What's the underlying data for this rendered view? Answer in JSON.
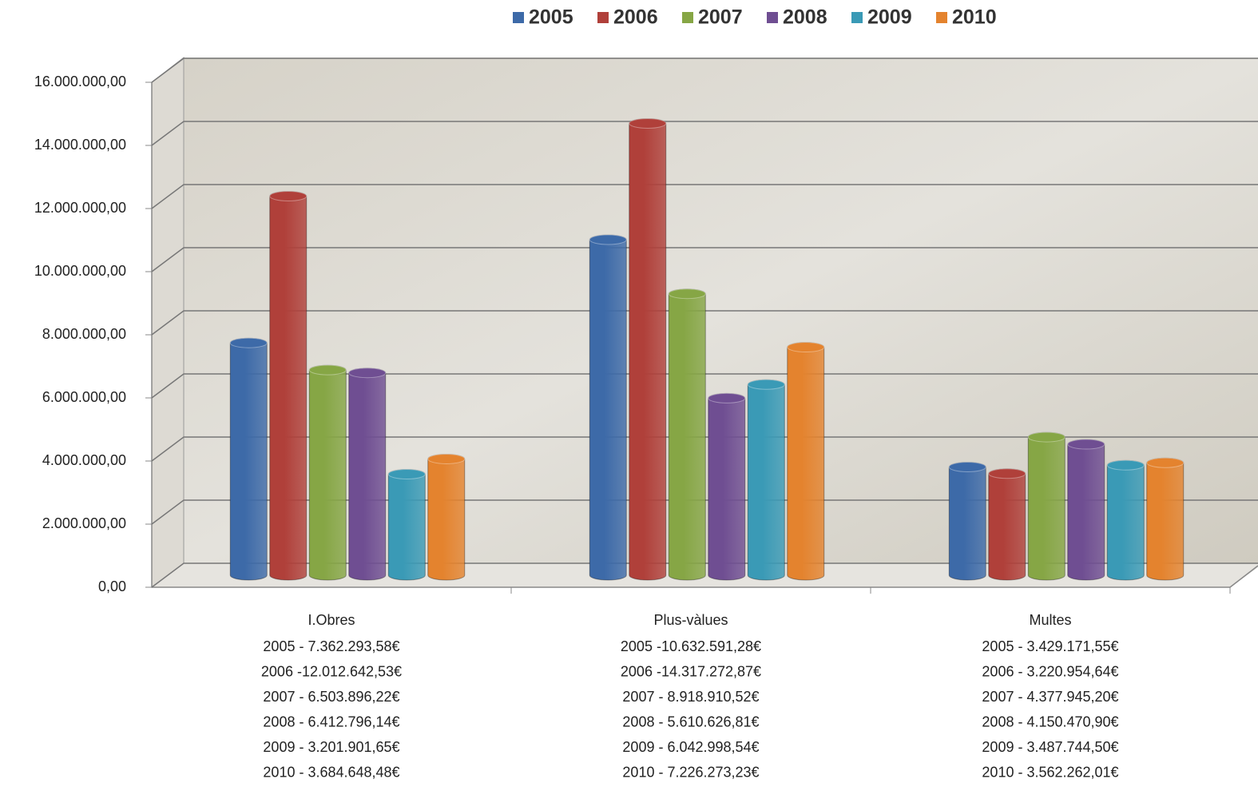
{
  "chart_data": {
    "type": "bar3d",
    "categories": [
      "I.Obres",
      "Plus-vàlues",
      "Multes"
    ],
    "series": [
      {
        "name": "2005",
        "color": "#3d6aa8",
        "values": [
          7362293.58,
          10632591.28,
          3429171.55
        ],
        "value_labels": [
          "2005 - 7.362.293,58€",
          "2005 -10.632.591,28€",
          "2005 - 3.429.171,55€"
        ]
      },
      {
        "name": "2006",
        "color": "#b0403a",
        "values": [
          12012642.53,
          14317272.87,
          3220954.64
        ],
        "value_labels": [
          "2006 -12.012.642,53€",
          "2006 -14.317.272,87€",
          "2006 - 3.220.954,64€"
        ]
      },
      {
        "name": "2007",
        "color": "#86a645",
        "values": [
          6503896.22,
          8918910.52,
          4377945.2
        ],
        "value_labels": [
          "2007 - 6.503.896,22€",
          "2007 - 8.918.910,52€",
          "2007 - 4.377.945,20€"
        ]
      },
      {
        "name": "2008",
        "color": "#6f4e92",
        "values": [
          6412796.14,
          5610626.81,
          4150470.9
        ],
        "value_labels": [
          "2008 - 6.412.796,14€",
          "2008 - 5.610.626,81€",
          "2008 - 4.150.470,90€"
        ]
      },
      {
        "name": "2009",
        "color": "#3a9ab6",
        "values": [
          3201901.65,
          6042998.54,
          3487744.5
        ],
        "value_labels": [
          "2009 - 3.201.901,65€",
          "2009 - 6.042.998,54€",
          "2009 - 3.487.744,50€"
        ]
      },
      {
        "name": "2010",
        "color": "#e4832e",
        "values": [
          3684648.48,
          7226273.23,
          3562262.01
        ],
        "value_labels": [
          "2010 - 3.684.648,48€",
          "2010 - 7.226.273,23€",
          "2010 - 3.562.262,01€"
        ]
      }
    ],
    "ylim": [
      0,
      16000000
    ],
    "yticks": [
      {
        "value": 0,
        "label": "0,00"
      },
      {
        "value": 2000000,
        "label": "2.000.000,00"
      },
      {
        "value": 4000000,
        "label": "4.000.000,00"
      },
      {
        "value": 6000000,
        "label": "6.000.000,00"
      },
      {
        "value": 8000000,
        "label": "8.000.000,00"
      },
      {
        "value": 10000000,
        "label": "10.000.000,00"
      },
      {
        "value": 12000000,
        "label": "12.000.000,00"
      },
      {
        "value": 14000000,
        "label": "14.000.000,00"
      },
      {
        "value": 16000000,
        "label": "16.000.000,00"
      }
    ],
    "grid": true,
    "legend": "top"
  }
}
